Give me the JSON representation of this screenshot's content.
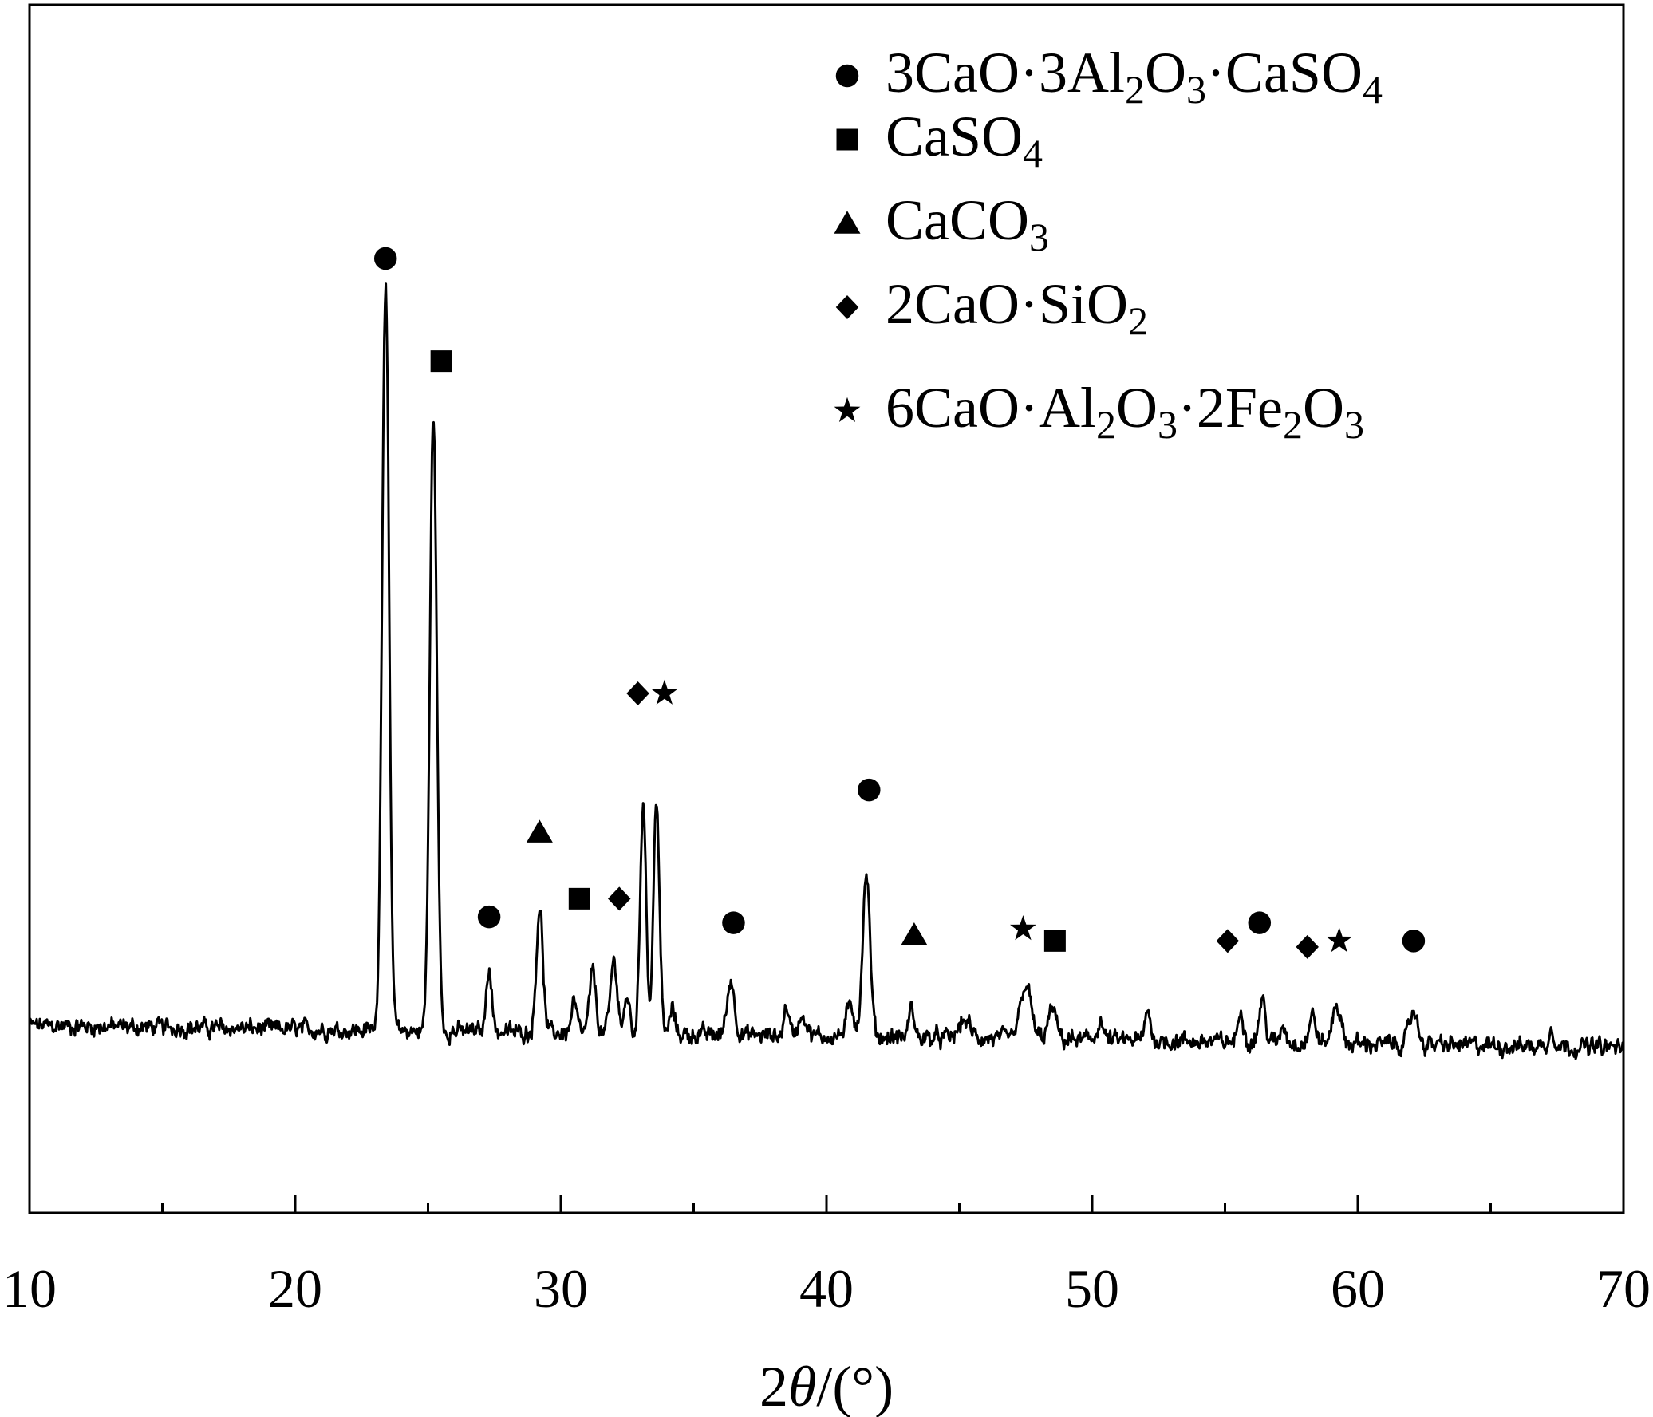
{
  "chart_data": {
    "type": "line",
    "xlabel": {
      "prefix": "2",
      "symbol": "θ",
      "suffix": "/(°)"
    },
    "ylabel": "",
    "xlim": [
      10,
      70
    ],
    "ylim": [
      0,
      100
    ],
    "x_ticks": [
      "10",
      "20",
      "30",
      "40",
      "50",
      "60",
      "70"
    ],
    "x_minor_ticks": [
      15,
      25,
      35,
      45,
      55,
      65
    ],
    "y_ticks": [],
    "grid": false,
    "legend_position": "top-right",
    "baseline": 15.5,
    "peaks": [
      {
        "x": 23.4,
        "h": 62,
        "w": 0.13
      },
      {
        "x": 25.2,
        "h": 51,
        "w": 0.13
      },
      {
        "x": 27.3,
        "h": 5.5,
        "w": 0.1
      },
      {
        "x": 29.2,
        "h": 10.5,
        "w": 0.12
      },
      {
        "x": 30.5,
        "h": 2.5,
        "w": 0.1
      },
      {
        "x": 31.2,
        "h": 5,
        "w": 0.12
      },
      {
        "x": 32.0,
        "h": 6,
        "w": 0.13
      },
      {
        "x": 32.5,
        "h": 3,
        "w": 0.1
      },
      {
        "x": 33.1,
        "h": 19.5,
        "w": 0.11
      },
      {
        "x": 33.6,
        "h": 19.5,
        "w": 0.11
      },
      {
        "x": 34.2,
        "h": 2,
        "w": 0.1
      },
      {
        "x": 36.4,
        "h": 4.5,
        "w": 0.14
      },
      {
        "x": 38.5,
        "h": 2.5,
        "w": 0.1
      },
      {
        "x": 39.1,
        "h": 1.8,
        "w": 0.15
      },
      {
        "x": 40.9,
        "h": 2.5,
        "w": 0.15
      },
      {
        "x": 41.5,
        "h": 13.5,
        "w": 0.14
      },
      {
        "x": 43.2,
        "h": 2.5,
        "w": 0.1
      },
      {
        "x": 45.2,
        "h": 1.5,
        "w": 0.2
      },
      {
        "x": 47.5,
        "h": 4.5,
        "w": 0.2
      },
      {
        "x": 48.5,
        "h": 2.5,
        "w": 0.15
      },
      {
        "x": 50.3,
        "h": 1.5,
        "w": 0.12
      },
      {
        "x": 52.1,
        "h": 2.5,
        "w": 0.1
      },
      {
        "x": 55.6,
        "h": 2.8,
        "w": 0.1
      },
      {
        "x": 56.4,
        "h": 3.5,
        "w": 0.12
      },
      {
        "x": 57.2,
        "h": 1.5,
        "w": 0.1
      },
      {
        "x": 58.3,
        "h": 2.3,
        "w": 0.12
      },
      {
        "x": 59.2,
        "h": 3.3,
        "w": 0.15
      },
      {
        "x": 62.1,
        "h": 2.8,
        "w": 0.15
      },
      {
        "x": 67.3,
        "h": 1.5,
        "w": 0.1
      }
    ],
    "peak_markers": [
      {
        "symbol": "circle",
        "x": 23.4,
        "y": 79
      },
      {
        "symbol": "square",
        "x": 25.5,
        "y": 70.5
      },
      {
        "symbol": "circle",
        "x": 27.3,
        "y": 24.5
      },
      {
        "symbol": "triangle",
        "x": 29.2,
        "y": 31.5
      },
      {
        "symbol": "square",
        "x": 30.7,
        "y": 26
      },
      {
        "symbol": "diamond",
        "x": 32.2,
        "y": 26
      },
      {
        "symbol": "diamond",
        "x": 32.9,
        "y": 43
      },
      {
        "symbol": "star",
        "x": 33.9,
        "y": 43
      },
      {
        "symbol": "circle",
        "x": 36.5,
        "y": 24
      },
      {
        "symbol": "circle",
        "x": 41.6,
        "y": 35
      },
      {
        "symbol": "triangle",
        "x": 43.3,
        "y": 23
      },
      {
        "symbol": "star",
        "x": 47.4,
        "y": 23.5
      },
      {
        "symbol": "square",
        "x": 48.6,
        "y": 22.5
      },
      {
        "symbol": "diamond",
        "x": 55.1,
        "y": 22.5
      },
      {
        "symbol": "circle",
        "x": 56.3,
        "y": 24
      },
      {
        "symbol": "diamond",
        "x": 58.1,
        "y": 22
      },
      {
        "symbol": "star",
        "x": 59.3,
        "y": 22.5
      },
      {
        "symbol": "circle",
        "x": 62.1,
        "y": 22.5
      }
    ],
    "legend": [
      {
        "symbol": "circle",
        "parts": [
          [
            "3CaO·3Al",
            ""
          ],
          [
            "2",
            "sub"
          ],
          [
            "O",
            ""
          ],
          [
            "3",
            "sub"
          ],
          [
            "·CaSO",
            ""
          ],
          [
            "4",
            "sub"
          ]
        ]
      },
      {
        "symbol": "square",
        "parts": [
          [
            "CaSO",
            ""
          ],
          [
            "4",
            "sub"
          ]
        ]
      },
      {
        "symbol": "triangle",
        "parts": [
          [
            "CaCO",
            ""
          ],
          [
            "3",
            "sub"
          ]
        ]
      },
      {
        "symbol": "diamond",
        "parts": [
          [
            "2CaO·SiO",
            ""
          ],
          [
            "2",
            "sub"
          ]
        ]
      },
      {
        "symbol": "star",
        "parts": [
          [
            "6CaO·Al",
            ""
          ],
          [
            "2",
            "sub"
          ],
          [
            "O",
            ""
          ],
          [
            "3",
            "sub"
          ],
          [
            "·2Fe",
            ""
          ],
          [
            "2",
            "sub"
          ],
          [
            "O",
            ""
          ],
          [
            "3",
            "sub"
          ]
        ]
      }
    ]
  }
}
